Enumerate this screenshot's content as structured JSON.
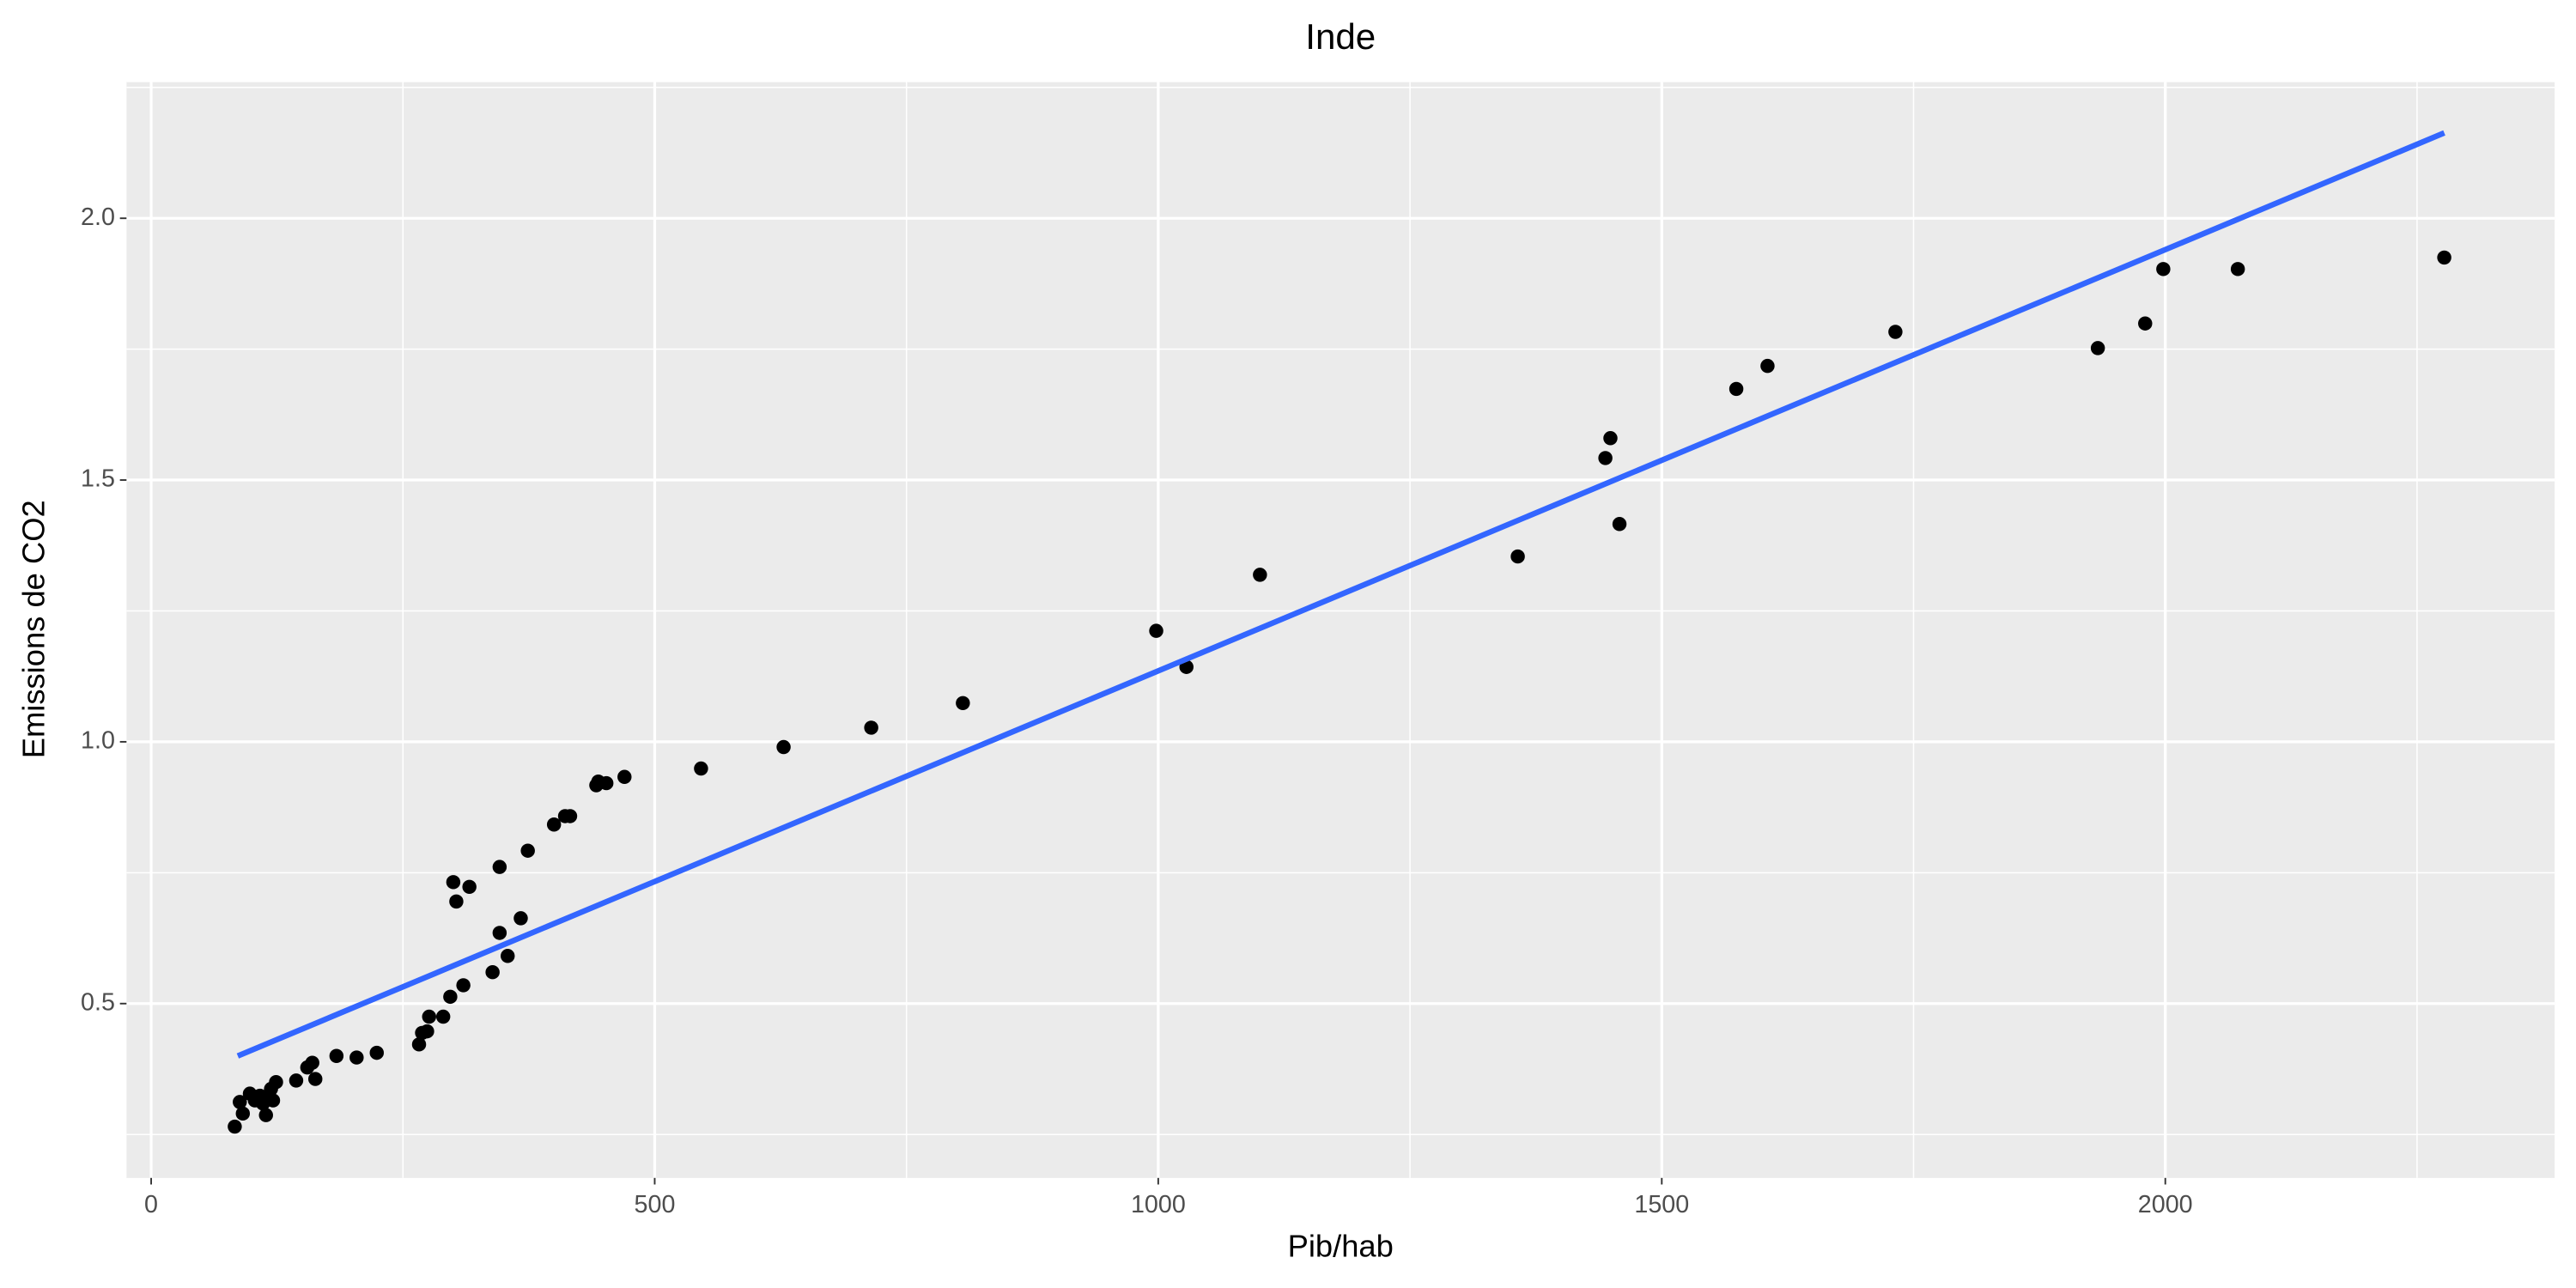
{
  "chart_data": {
    "type": "scatter",
    "title": "Inde",
    "xlabel": "Pib/hab",
    "ylabel": "Emissions de CO2",
    "x": [
      83,
      88,
      91,
      98,
      103,
      108,
      111,
      114,
      116,
      119,
      121,
      124,
      144,
      155,
      160,
      163,
      184,
      204,
      224,
      266,
      269,
      274,
      276,
      290,
      297,
      310,
      300,
      303,
      316,
      339,
      346,
      346,
      354,
      367,
      374,
      400,
      411,
      416,
      442,
      444,
      452,
      470,
      546,
      628,
      715,
      806,
      998,
      1028,
      1101,
      1357,
      1444,
      1449,
      1458,
      1574,
      1605,
      1732,
      1933,
      1980,
      1998,
      2072,
      2277
    ],
    "values": [
      0.265,
      0.312,
      0.29,
      0.328,
      0.315,
      0.324,
      0.309,
      0.287,
      0.324,
      0.337,
      0.315,
      0.35,
      0.353,
      0.378,
      0.387,
      0.356,
      0.4,
      0.397,
      0.406,
      0.422,
      0.444,
      0.447,
      0.475,
      0.475,
      0.513,
      0.535,
      0.732,
      0.695,
      0.723,
      0.56,
      0.635,
      0.761,
      0.591,
      0.663,
      0.792,
      0.842,
      0.858,
      0.858,
      0.917,
      0.924,
      0.921,
      0.933,
      0.949,
      0.99,
      1.027,
      1.074,
      1.212,
      1.143,
      1.319,
      1.354,
      1.542,
      1.58,
      1.416,
      1.674,
      1.718,
      1.783,
      1.752,
      1.799,
      1.903,
      1.903,
      1.925
    ],
    "color": "#000000",
    "trend": {
      "x": [
        86,
        2277
      ],
      "y": [
        0.4,
        2.163
      ],
      "color": "#3366ff"
    },
    "xlim": [
      -24.5,
      2386.6
    ],
    "ylim": [
      0.167,
      2.26
    ],
    "xticks": [
      0,
      500,
      1000,
      1500,
      2000
    ],
    "yticks": [
      {
        "value": 0.5,
        "label": "0.5"
      },
      {
        "value": 1,
        "label": "1.0"
      },
      {
        "value": 1.5,
        "label": "1.5"
      },
      {
        "value": 2,
        "label": "2.0"
      }
    ],
    "x_minor_grid": [
      250,
      750,
      1250,
      1750,
      2250
    ],
    "y_minor_grid": [
      0.25,
      0.75,
      1.25,
      1.75,
      2.25
    ],
    "grid": true
  }
}
